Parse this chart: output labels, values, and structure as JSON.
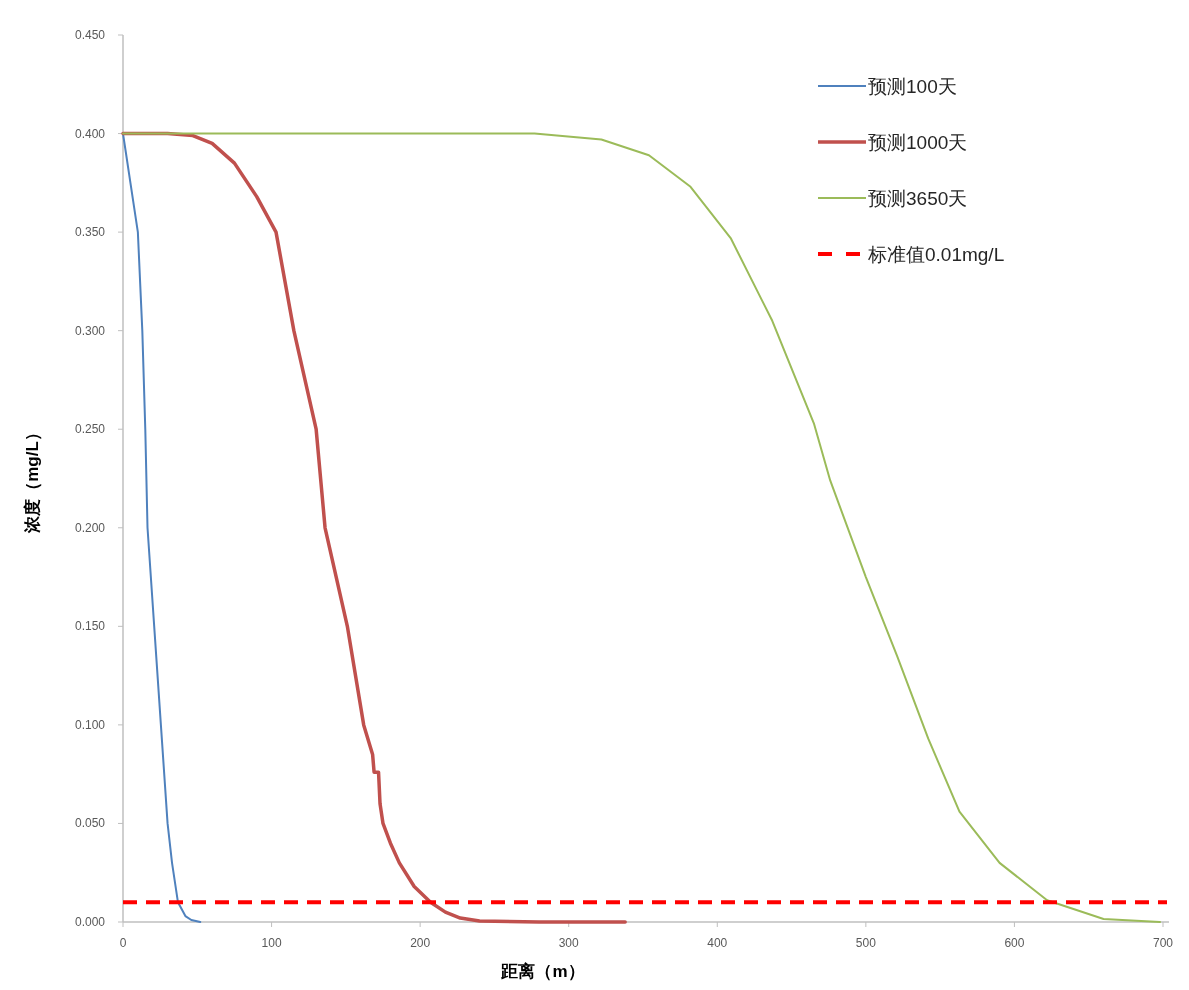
{
  "chart_data": {
    "type": "line",
    "xlabel": "距离（m）",
    "ylabel": "浓度（mg/L）",
    "xlim": [
      0,
      700
    ],
    "xticks": [
      0,
      100,
      200,
      300,
      400,
      500,
      600,
      700
    ],
    "ylim": [
      0,
      0.45
    ],
    "yticks": [
      {
        "value": 0,
        "label": "0.000"
      },
      {
        "value": 0.05,
        "label": "0.050"
      },
      {
        "value": 0.1,
        "label": "0.100"
      },
      {
        "value": 0.15,
        "label": "0.150"
      },
      {
        "value": 0.2,
        "label": "0.200"
      },
      {
        "value": 0.25,
        "label": "0.250"
      },
      {
        "value": 0.3,
        "label": "0.300"
      },
      {
        "value": 0.35,
        "label": "0.350"
      },
      {
        "value": 0.4,
        "label": "0.400"
      },
      {
        "value": 0.45,
        "label": "0.450"
      }
    ],
    "grid": false,
    "legend": "top right",
    "marker": "none",
    "series": [
      {
        "name": "预测100天",
        "color": "#4f81bd",
        "x": [
          0,
          2,
          5,
          10,
          13,
          15,
          16.5,
          21,
          25.5,
          30,
          33,
          37,
          42,
          46,
          52
        ],
        "values": [
          0.4,
          0.39,
          0.375,
          0.35,
          0.3,
          0.25,
          0.2,
          0.15,
          0.1,
          0.05,
          0.03,
          0.01,
          0.003,
          0.001,
          0
        ]
      },
      {
        "name": "预测1000天",
        "color": "#c0504d",
        "x": [
          0,
          30,
          47,
          60,
          75,
          90,
          103,
          115,
          130,
          136,
          151,
          162,
          168,
          169,
          172,
          173,
          175,
          180,
          186,
          196,
          207,
          217,
          227,
          240,
          280,
          338
        ],
        "values": [
          0.4,
          0.4,
          0.399,
          0.395,
          0.385,
          0.368,
          0.35,
          0.3,
          0.25,
          0.2,
          0.15,
          0.1,
          0.085,
          0.076,
          0.076,
          0.06,
          0.05,
          0.04,
          0.03,
          0.018,
          0.01,
          0.005,
          0.002,
          0.0005,
          0,
          0
        ]
      },
      {
        "name": "预测3650天",
        "color": "#9bbb59",
        "x": [
          0,
          100,
          200,
          277,
          322,
          354,
          382,
          409,
          437,
          465,
          476,
          500,
          521,
          542,
          563,
          590,
          622,
          660,
          698
        ],
        "values": [
          0.4,
          0.4,
          0.4,
          0.4,
          0.397,
          0.389,
          0.373,
          0.347,
          0.305,
          0.253,
          0.224,
          0.175,
          0.135,
          0.093,
          0.056,
          0.03,
          0.011,
          0.0015,
          0
        ]
      }
    ],
    "ref_lines": [
      {
        "axis": "y",
        "value": 0.01,
        "label": "标准值0.01mg/L",
        "color": "#ff0000",
        "line_style": "dashed"
      }
    ]
  }
}
